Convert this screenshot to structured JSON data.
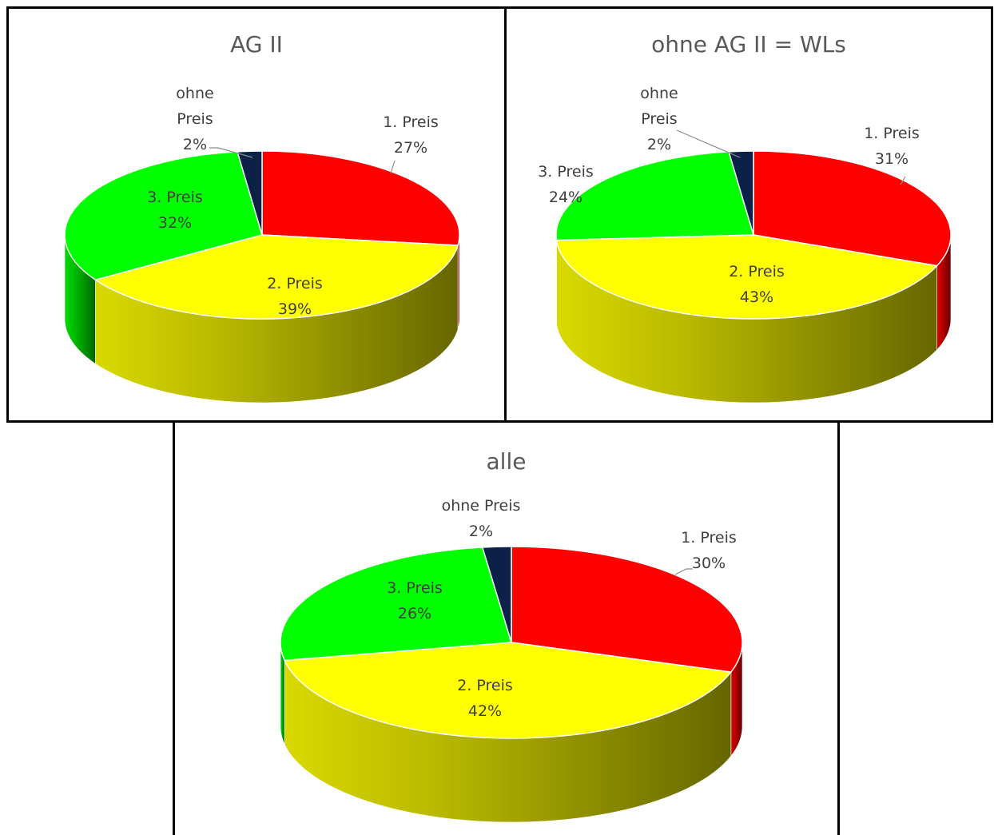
{
  "chart_data": [
    {
      "type": "pie",
      "title": "AG II",
      "categories": [
        "1. Preis",
        "2. Preis",
        "3. Preis",
        "ohne Preis"
      ],
      "values": [
        27,
        39,
        32,
        2
      ],
      "value_labels": [
        "27%",
        "39%",
        "32%",
        "2%"
      ],
      "colors": [
        "#ff0000",
        "#ffff00",
        "#00ff00",
        "#0b2147"
      ],
      "style": "3d-perspective",
      "legend": "none"
    },
    {
      "type": "pie",
      "title": "ohne AG II = WLs",
      "categories": [
        "1. Preis",
        "2. Preis",
        "3. Preis",
        "ohne Preis"
      ],
      "values": [
        31,
        43,
        24,
        2
      ],
      "value_labels": [
        "31%",
        "43%",
        "24%",
        "2%"
      ],
      "colors": [
        "#ff0000",
        "#ffff00",
        "#00ff00",
        "#0b2147"
      ],
      "style": "3d-perspective",
      "legend": "none"
    },
    {
      "type": "pie",
      "title": "alle",
      "categories": [
        "1. Preis",
        "2. Preis",
        "3. Preis",
        "ohne Preis"
      ],
      "values": [
        30,
        42,
        26,
        2
      ],
      "value_labels": [
        "30%",
        "42%",
        "26%",
        "2%"
      ],
      "colors": [
        "#ff0000",
        "#ffff00",
        "#00ff00",
        "#0b2147"
      ],
      "style": "3d-perspective",
      "legend": "none"
    }
  ]
}
